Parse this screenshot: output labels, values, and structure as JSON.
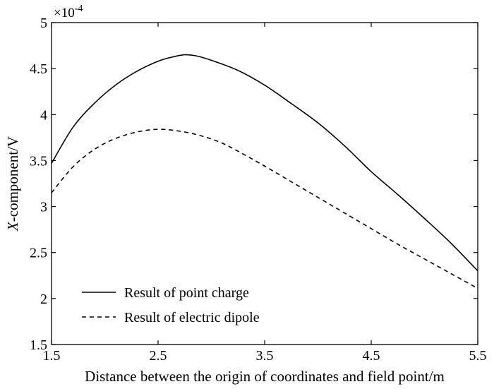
{
  "chart_data": {
    "type": "line",
    "title": "",
    "xlabel": "Distance between the origin of coordinates and field point/m",
    "ylabel_italic": "X",
    "ylabel_rest": "-component/V",
    "y_multiplier": "×10",
    "y_multiplier_exp": "-4",
    "xlim": [
      1.5,
      5.5
    ],
    "ylim": [
      1.5,
      5
    ],
    "x_ticks": [
      1.5,
      2.5,
      3.5,
      4.5,
      5.5
    ],
    "x_tick_labels": [
      "1.5",
      "2.5",
      "3.5",
      "4.5",
      "5.5"
    ],
    "y_ticks": [
      1.5,
      2,
      2.5,
      3,
      3.5,
      4,
      4.5,
      5
    ],
    "y_tick_labels": [
      "1.5",
      "2",
      "2.5",
      "3",
      "3.5",
      "4",
      "4.5",
      "5"
    ],
    "grid": false,
    "legend_position": "bottom-left",
    "series": [
      {
        "name": "Result of point charge",
        "style": "solid",
        "x": [
          1.5,
          1.7,
          1.9,
          2.1,
          2.3,
          2.5,
          2.65,
          2.75,
          2.85,
          3.0,
          3.25,
          3.5,
          3.75,
          4.0,
          4.25,
          4.5,
          4.75,
          5.0,
          5.25,
          5.5
        ],
        "y": [
          3.47,
          3.86,
          4.12,
          4.32,
          4.47,
          4.58,
          4.63,
          4.65,
          4.64,
          4.59,
          4.48,
          4.32,
          4.12,
          3.91,
          3.66,
          3.38,
          3.13,
          2.87,
          2.6,
          2.3
        ]
      },
      {
        "name": "Result of electric dipole",
        "style": "dashed",
        "x": [
          1.5,
          1.7,
          1.9,
          2.1,
          2.3,
          2.5,
          2.7,
          2.9,
          3.1,
          3.3,
          3.5,
          3.75,
          4.0,
          4.25,
          4.5,
          4.75,
          5.0,
          5.25,
          5.5
        ],
        "y": [
          3.15,
          3.43,
          3.62,
          3.74,
          3.81,
          3.84,
          3.82,
          3.77,
          3.69,
          3.57,
          3.44,
          3.27,
          3.1,
          2.93,
          2.76,
          2.59,
          2.43,
          2.27,
          2.11
        ]
      }
    ]
  }
}
